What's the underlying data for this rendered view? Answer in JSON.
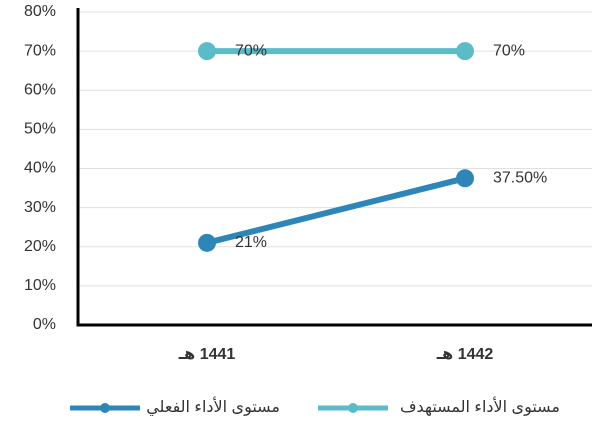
{
  "chart_data": {
    "type": "line",
    "categories": [
      "1441 هـ",
      "1442 هـ"
    ],
    "series": [
      {
        "name": "مستوى الأداء الفعلي",
        "color": "#2e86b8",
        "values": [
          21,
          37.5
        ],
        "value_labels": [
          "21%",
          "37.50%"
        ]
      },
      {
        "name": "مستوى الأداء المستهدف",
        "color": "#5bbcc8",
        "values": [
          70,
          70
        ],
        "value_labels": [
          "70%",
          "70%"
        ]
      }
    ],
    "ylim": [
      0,
      80
    ],
    "yticks": [
      {
        "value": 0,
        "label": "0%"
      },
      {
        "value": 10,
        "label": "10%"
      },
      {
        "value": 20,
        "label": "20%"
      },
      {
        "value": 30,
        "label": "30%"
      },
      {
        "value": 40,
        "label": "40%"
      },
      {
        "value": 50,
        "label": "50%"
      },
      {
        "value": 60,
        "label": "60%"
      },
      {
        "value": 70,
        "label": "70%"
      },
      {
        "value": 80,
        "label": "80%"
      }
    ],
    "grid": true,
    "legend": "bottom"
  }
}
